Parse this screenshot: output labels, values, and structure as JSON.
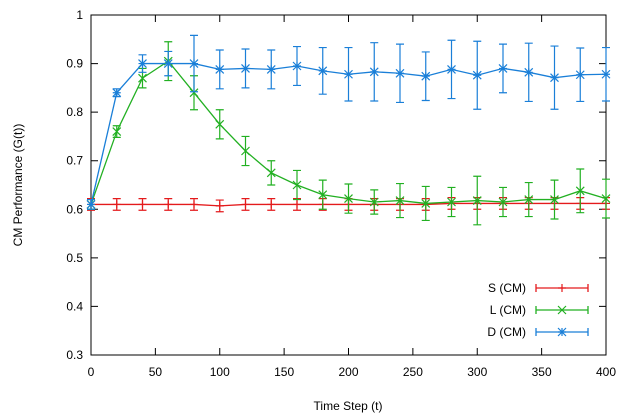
{
  "chart_data": {
    "type": "errorline",
    "xlabel": "Time Step (t)",
    "ylabel": "CM Performance (G(t))",
    "x": [
      0,
      20,
      40,
      60,
      80,
      100,
      120,
      140,
      160,
      180,
      200,
      220,
      240,
      260,
      280,
      300,
      320,
      340,
      360,
      380,
      400
    ],
    "series": [
      {
        "name": "S (CM)",
        "color": "#e41a1c",
        "marker": "plus",
        "values": [
          0.61,
          0.61,
          0.61,
          0.61,
          0.61,
          0.607,
          0.61,
          0.61,
          0.61,
          0.61,
          0.61,
          0.61,
          0.61,
          0.61,
          0.612,
          0.612,
          0.612,
          0.612,
          0.612,
          0.612,
          0.612
        ],
        "errors": [
          0.012,
          0.012,
          0.012,
          0.012,
          0.012,
          0.012,
          0.012,
          0.012,
          0.012,
          0.012,
          0.012,
          0.012,
          0.012,
          0.012,
          0.012,
          0.012,
          0.012,
          0.012,
          0.012,
          0.012,
          0.012
        ]
      },
      {
        "name": "L (CM)",
        "color": "#22b022",
        "marker": "cross",
        "values": [
          0.61,
          0.76,
          0.87,
          0.905,
          0.84,
          0.775,
          0.72,
          0.675,
          0.65,
          0.63,
          0.622,
          0.615,
          0.618,
          0.612,
          0.615,
          0.618,
          0.615,
          0.62,
          0.62,
          0.638,
          0.622
        ],
        "errors": [
          0.01,
          0.012,
          0.02,
          0.04,
          0.035,
          0.03,
          0.03,
          0.025,
          0.03,
          0.03,
          0.03,
          0.025,
          0.035,
          0.035,
          0.03,
          0.05,
          0.03,
          0.035,
          0.04,
          0.045,
          0.04
        ]
      },
      {
        "name": "D (CM)",
        "color": "#1a7fd8",
        "marker": "star",
        "values": [
          0.61,
          0.84,
          0.9,
          0.9,
          0.9,
          0.888,
          0.89,
          0.888,
          0.895,
          0.885,
          0.878,
          0.883,
          0.88,
          0.874,
          0.888,
          0.876,
          0.89,
          0.882,
          0.871,
          0.877,
          0.878
        ],
        "errors": [
          0.01,
          0.008,
          0.018,
          0.025,
          0.058,
          0.04,
          0.04,
          0.04,
          0.04,
          0.048,
          0.055,
          0.06,
          0.06,
          0.05,
          0.06,
          0.07,
          0.05,
          0.06,
          0.065,
          0.055,
          0.055
        ]
      }
    ],
    "xlim": [
      0,
      400
    ],
    "xticks": [
      0,
      50,
      100,
      150,
      200,
      250,
      300,
      350,
      400
    ],
    "ylim": [
      0.3,
      1
    ],
    "yticks": [
      0.3,
      0.4,
      0.5,
      0.6,
      0.7,
      0.8,
      0.9,
      1
    ],
    "legend": "lower right"
  }
}
